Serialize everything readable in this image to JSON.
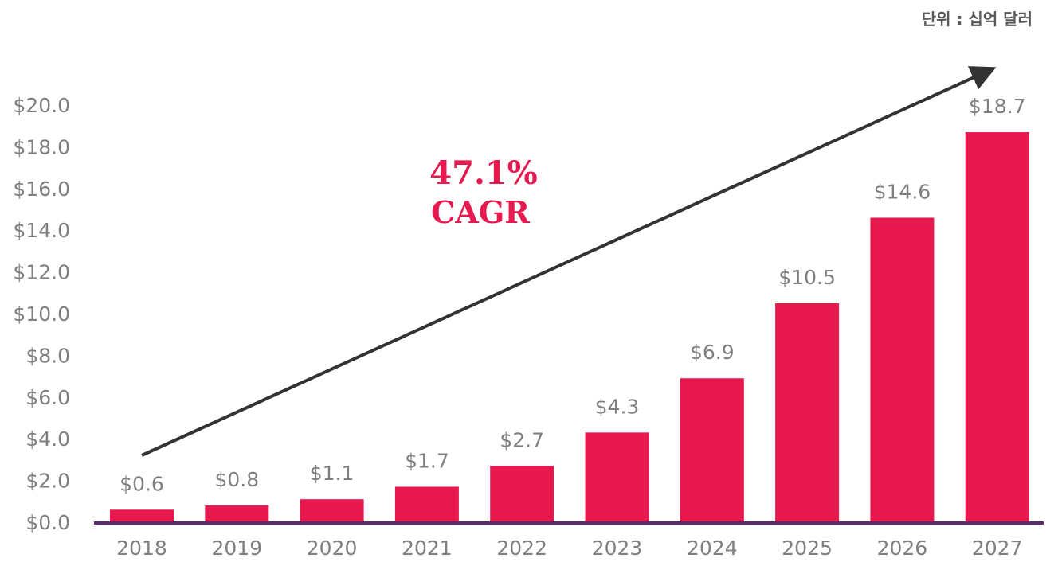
{
  "unit_label": "단위 : 십억 달러",
  "annotation": {
    "rate": "47.1%",
    "label": "CAGR"
  },
  "colors": {
    "bar": "#e8194f",
    "axis": "#5a2a6e",
    "arrow": "#333333",
    "text": "#7f7f7f",
    "accent": "#e8194f"
  },
  "chart_data": {
    "type": "bar",
    "categories": [
      "2018",
      "2019",
      "2020",
      "2021",
      "2022",
      "2023",
      "2024",
      "2025",
      "2026",
      "2027"
    ],
    "values": [
      0.6,
      0.8,
      1.1,
      1.7,
      2.7,
      4.3,
      6.9,
      10.5,
      14.6,
      18.7
    ],
    "value_labels": [
      "$0.6",
      "$0.8",
      "$1.1",
      "$1.7",
      "$2.7",
      "$4.3",
      "$6.9",
      "$10.5",
      "$14.6",
      "$18.7"
    ],
    "y_ticks": [
      0,
      2,
      4,
      6,
      8,
      10,
      12,
      14,
      16,
      18,
      20
    ],
    "y_tick_labels": [
      "$0.0",
      "$2.0",
      "$4.0",
      "$6.0",
      "$8.0",
      "$10.0",
      "$12.0",
      "$14.0",
      "$16.0",
      "$18.0",
      "$20.0"
    ],
    "ylim": [
      0,
      20
    ],
    "grid": false,
    "legend": "none"
  }
}
